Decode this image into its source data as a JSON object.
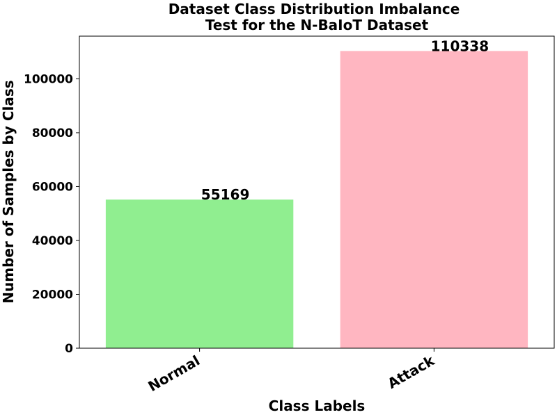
{
  "chart_data": {
    "type": "bar",
    "title_lines": [
      "Dataset Class Distribution Imbalance",
      "Test for the N-BaIoT Dataset"
    ],
    "xlabel": "Class Labels",
    "ylabel": "Number of Samples by Class",
    "categories": [
      "Normal",
      "Attack"
    ],
    "values": [
      55169,
      110338
    ],
    "value_labels": [
      "55169",
      "110338"
    ],
    "colors": [
      "#90ee90",
      "#ffb6c1"
    ],
    "ylim": [
      0,
      115855
    ],
    "yticks": [
      0,
      20000,
      40000,
      60000,
      80000,
      100000
    ],
    "ytick_labels": [
      "0",
      "20000",
      "40000",
      "60000",
      "80000",
      "100000"
    ],
    "grid": false,
    "legend": "none"
  }
}
